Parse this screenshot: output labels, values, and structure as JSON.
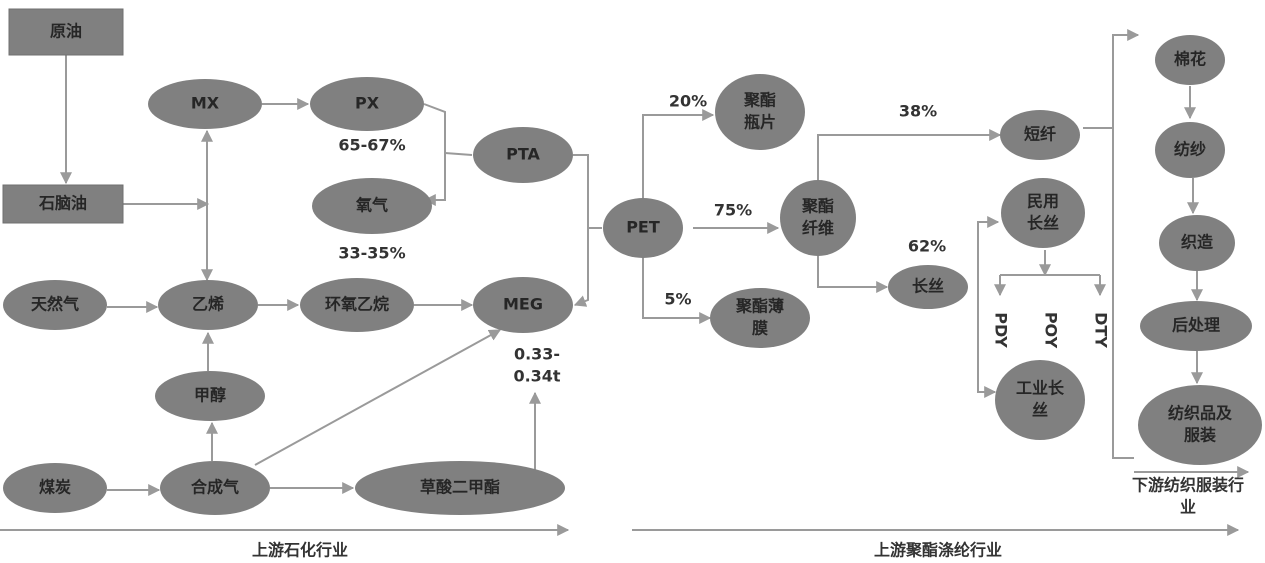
{
  "nodes": [
    [
      "原油"
    ],
    [
      "石脑油"
    ],
    [
      "MX"
    ],
    [
      "PX"
    ],
    [
      "氧气"
    ],
    [
      "PTA"
    ],
    [
      "天然气"
    ],
    [
      "乙烯"
    ],
    [
      "环氧乙烷"
    ],
    [
      "MEG"
    ],
    [
      "甲醇"
    ],
    [
      "煤炭"
    ],
    [
      "合成气"
    ],
    [
      "草酸二甲酯"
    ],
    [
      "PET"
    ],
    [
      "聚酯",
      "瓶片"
    ],
    [
      "聚酯",
      "纤维"
    ],
    [
      "聚酯薄",
      "膜"
    ],
    [
      "短纤"
    ],
    [
      "民用",
      "长丝"
    ],
    [
      "长丝"
    ],
    [
      "工业长",
      "丝"
    ],
    [
      "棉花"
    ],
    [
      "纺纱"
    ],
    [
      "织造"
    ],
    [
      "后处理"
    ],
    [
      "纺织品及",
      "服装"
    ]
  ],
  "annotations": [
    [
      "65-67%"
    ],
    [
      "33-35%"
    ],
    [
      "0.33-",
      "0.34t"
    ],
    [
      "20%"
    ],
    [
      "75%"
    ],
    [
      "5%"
    ],
    [
      "38%"
    ],
    [
      "62%"
    ]
  ],
  "yarn_types": [
    "PDY",
    "POY",
    "DTY"
  ],
  "sections": [
    [
      "上游石化行业"
    ],
    [
      "上游聚酯涤纶行业"
    ],
    [
      "下游纺织服装行",
      "业"
    ]
  ]
}
